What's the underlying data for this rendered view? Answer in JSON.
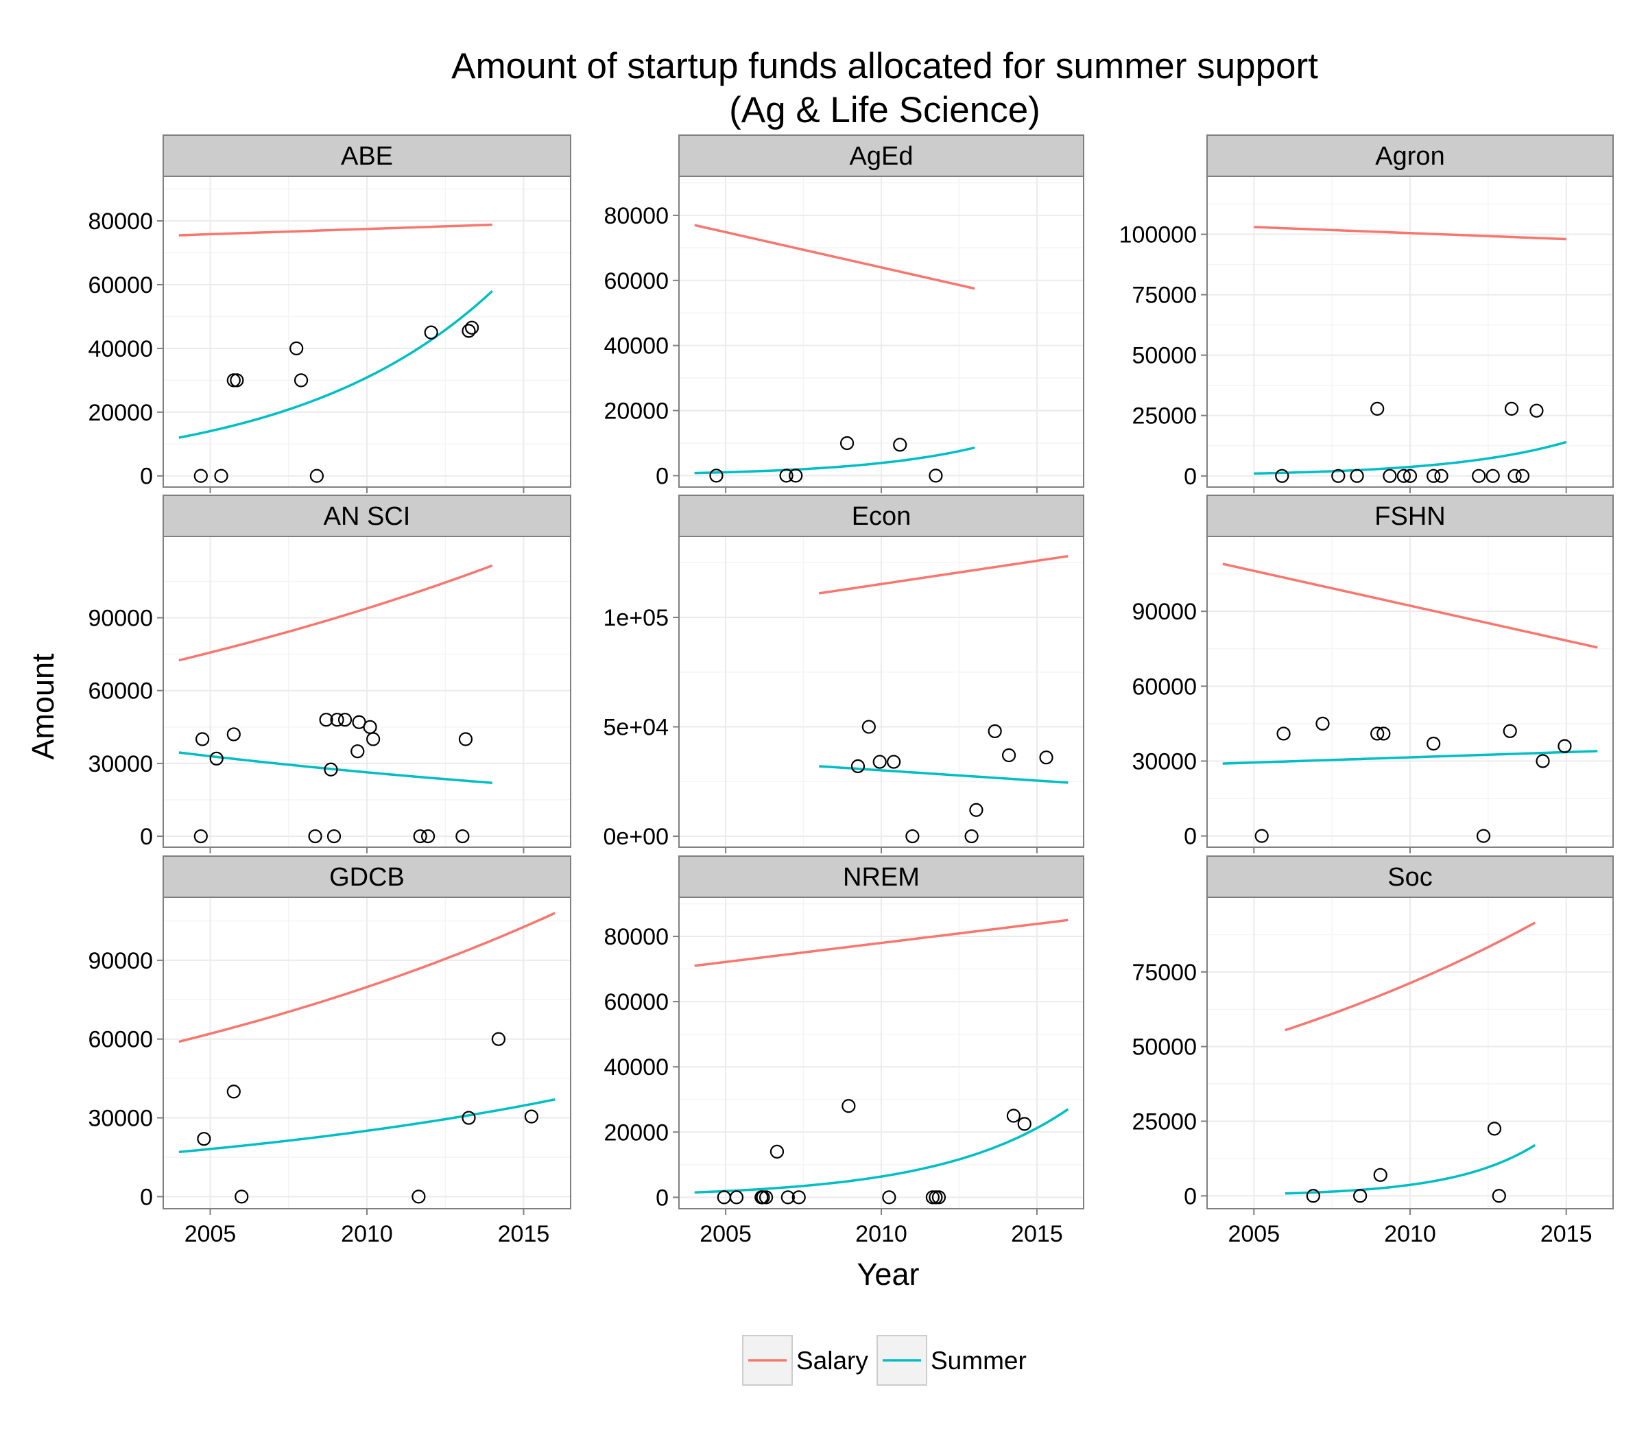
{
  "chart_data": {
    "type": "scatter",
    "title": "Amount of startup funds allocated for summer support",
    "subtitle": "(Ag & Life Science)",
    "xlabel": "Year",
    "ylabel": "Amount",
    "xlim": [
      2003.5,
      2016.5
    ],
    "x_ticks": [
      2005,
      2010,
      2015
    ],
    "x_tick_labels": [
      "2005",
      "2010",
      "2015"
    ],
    "legend": {
      "position": "bottom",
      "entries": [
        {
          "name": "Salary",
          "color": "#F8766D"
        },
        {
          "name": "Summer",
          "color": "#00BFC4"
        }
      ]
    },
    "panels": [
      {
        "name": "ABE",
        "ylim": [
          -3500,
          94000
        ],
        "y_ticks": [
          0,
          20000,
          40000,
          60000,
          80000
        ],
        "y_tick_labels": [
          "0",
          "20000",
          "40000",
          "60000",
          "80000"
        ],
        "points": [
          [
            2004.7,
            0
          ],
          [
            2005.35,
            0
          ],
          [
            2005.75,
            30000
          ],
          [
            2005.85,
            30000
          ],
          [
            2007.75,
            40000
          ],
          [
            2007.9,
            30000
          ],
          [
            2008.4,
            0
          ],
          [
            2012.05,
            45000
          ],
          [
            2013.25,
            45500
          ],
          [
            2013.35,
            46500
          ]
        ],
        "salary": {
          "x_start": 2004,
          "x_end": 2014,
          "y_start": 75500,
          "y_end": 78800,
          "type": "linear"
        },
        "summer": {
          "x_start": 2004,
          "x_end": 2014,
          "y_start": 12000,
          "y_end": 58000,
          "type": "exp"
        }
      },
      {
        "name": "AgEd",
        "ylim": [
          -3500,
          92000
        ],
        "y_ticks": [
          0,
          20000,
          40000,
          60000,
          80000
        ],
        "y_tick_labels": [
          "0",
          "20000",
          "40000",
          "60000",
          "80000"
        ],
        "points": [
          [
            2004.7,
            0
          ],
          [
            2006.95,
            0
          ],
          [
            2007.25,
            0
          ],
          [
            2008.9,
            10000
          ],
          [
            2010.6,
            9500
          ],
          [
            2011.75,
            0
          ]
        ],
        "salary": {
          "x_start": 2004,
          "x_end": 2013,
          "y_start": 77000,
          "y_end": 57500,
          "type": "linear"
        },
        "summer": {
          "x_start": 2004,
          "x_end": 2013,
          "y_start": 800,
          "y_end": 8600,
          "type": "exp"
        }
      },
      {
        "name": "Agron",
        "ylim": [
          -4600,
          124000
        ],
        "y_ticks": [
          0,
          25000,
          50000,
          75000,
          100000
        ],
        "y_tick_labels": [
          "0",
          "25000",
          "50000",
          "75000",
          "100000"
        ],
        "points": [
          [
            2005.9,
            0
          ],
          [
            2007.7,
            0
          ],
          [
            2008.3,
            0
          ],
          [
            2008.95,
            27800
          ],
          [
            2009.35,
            0
          ],
          [
            2009.8,
            0
          ],
          [
            2010.0,
            0
          ],
          [
            2010.75,
            0
          ],
          [
            2011.0,
            0
          ],
          [
            2012.2,
            0
          ],
          [
            2012.65,
            0
          ],
          [
            2013.25,
            27800
          ],
          [
            2013.35,
            0
          ],
          [
            2013.6,
            0
          ],
          [
            2014.05,
            27000
          ]
        ],
        "salary": {
          "x_start": 2005,
          "x_end": 2015,
          "y_start": 103000,
          "y_end": 98000,
          "type": "linear"
        },
        "summer": {
          "x_start": 2005,
          "x_end": 2015,
          "y_start": 1000,
          "y_end": 14000,
          "type": "exp"
        }
      },
      {
        "name": "AN SCI",
        "ylim": [
          -4500,
          123500
        ],
        "y_ticks": [
          0,
          30000,
          60000,
          90000
        ],
        "y_tick_labels": [
          "0",
          "30000",
          "60000",
          "90000"
        ],
        "points": [
          [
            2004.7,
            0
          ],
          [
            2004.75,
            40000
          ],
          [
            2005.2,
            32000
          ],
          [
            2005.75,
            42000
          ],
          [
            2008.35,
            0
          ],
          [
            2008.7,
            48000
          ],
          [
            2008.85,
            27500
          ],
          [
            2008.95,
            0
          ],
          [
            2009.05,
            48000
          ],
          [
            2009.3,
            48000
          ],
          [
            2009.7,
            35000
          ],
          [
            2009.75,
            47000
          ],
          [
            2010.1,
            45000
          ],
          [
            2010.2,
            40000
          ],
          [
            2011.7,
            0
          ],
          [
            2011.95,
            0
          ],
          [
            2013.05,
            0
          ],
          [
            2013.15,
            40000
          ]
        ],
        "salary": {
          "x_start": 2004,
          "x_end": 2014,
          "y_start": 72500,
          "y_end": 111500,
          "type": "exp"
        },
        "summer": {
          "x_start": 2004,
          "x_end": 2014,
          "y_start": 34500,
          "y_end": 22000,
          "type": "exp"
        }
      },
      {
        "name": "Econ",
        "ylim": [
          -5000,
          137000
        ],
        "y_ticks": [
          0,
          50000,
          100000
        ],
        "y_tick_labels": [
          "0e+00",
          "5e+04",
          "1e+05"
        ],
        "points": [
          [
            2009.25,
            32000
          ],
          [
            2009.6,
            50000
          ],
          [
            2009.95,
            34000
          ],
          [
            2010.4,
            34000
          ],
          [
            2011.0,
            0
          ],
          [
            2012.9,
            0
          ],
          [
            2013.05,
            12000
          ],
          [
            2013.65,
            48000
          ],
          [
            2014.1,
            37000
          ],
          [
            2015.3,
            36000
          ]
        ],
        "salary": {
          "x_start": 2008,
          "x_end": 2016,
          "y_start": 111000,
          "y_end": 128000,
          "type": "linear"
        },
        "summer": {
          "x_start": 2008,
          "x_end": 2016,
          "y_start": 32000,
          "y_end": 24500,
          "type": "linear"
        }
      },
      {
        "name": "FSHN",
        "ylim": [
          -4500,
          120000
        ],
        "y_ticks": [
          0,
          30000,
          60000,
          90000
        ],
        "y_tick_labels": [
          "0",
          "30000",
          "60000",
          "90000"
        ],
        "points": [
          [
            2005.25,
            0
          ],
          [
            2005.95,
            41000
          ],
          [
            2007.2,
            45000
          ],
          [
            2008.95,
            41000
          ],
          [
            2009.15,
            41000
          ],
          [
            2010.75,
            37000
          ],
          [
            2012.35,
            0
          ],
          [
            2013.2,
            42000
          ],
          [
            2014.25,
            30000
          ],
          [
            2014.95,
            36000
          ]
        ],
        "salary": {
          "x_start": 2004,
          "x_end": 2016,
          "y_start": 109000,
          "y_end": 75500,
          "type": "linear"
        },
        "summer": {
          "x_start": 2004,
          "x_end": 2016,
          "y_start": 29000,
          "y_end": 34000,
          "type": "linear"
        }
      },
      {
        "name": "GDCB",
        "ylim": [
          -4600,
          114000
        ],
        "y_ticks": [
          0,
          30000,
          60000,
          90000
        ],
        "y_tick_labels": [
          "0",
          "30000",
          "60000",
          "90000"
        ],
        "points": [
          [
            2004.8,
            22000
          ],
          [
            2005.75,
            40000
          ],
          [
            2006.0,
            0
          ],
          [
            2011.65,
            0
          ],
          [
            2013.25,
            30000
          ],
          [
            2014.2,
            60000
          ],
          [
            2015.25,
            30500
          ]
        ],
        "salary": {
          "x_start": 2004,
          "x_end": 2016,
          "y_start": 59000,
          "y_end": 108000,
          "type": "exp"
        },
        "summer": {
          "x_start": 2004,
          "x_end": 2016,
          "y_start": 17000,
          "y_end": 37000,
          "type": "exp"
        }
      },
      {
        "name": "NREM",
        "ylim": [
          -3500,
          92000
        ],
        "y_ticks": [
          0,
          20000,
          40000,
          60000,
          80000
        ],
        "y_tick_labels": [
          "0",
          "20000",
          "40000",
          "60000",
          "80000"
        ],
        "points": [
          [
            2004.95,
            0
          ],
          [
            2005.35,
            0
          ],
          [
            2006.15,
            0
          ],
          [
            2006.2,
            0
          ],
          [
            2006.3,
            0
          ],
          [
            2006.65,
            14000
          ],
          [
            2007.0,
            0
          ],
          [
            2007.35,
            0
          ],
          [
            2008.95,
            28000
          ],
          [
            2010.25,
            0
          ],
          [
            2011.65,
            0
          ],
          [
            2011.75,
            0
          ],
          [
            2011.85,
            0
          ],
          [
            2014.25,
            25000
          ],
          [
            2014.6,
            22500
          ]
        ],
        "salary": {
          "x_start": 2004,
          "x_end": 2016,
          "y_start": 71000,
          "y_end": 85000,
          "type": "linear"
        },
        "summer": {
          "x_start": 2004,
          "x_end": 2016,
          "y_start": 1500,
          "y_end": 27000,
          "type": "exp"
        }
      },
      {
        "name": "Soc",
        "ylim": [
          -4300,
          100000
        ],
        "y_ticks": [
          0,
          25000,
          50000,
          75000
        ],
        "y_tick_labels": [
          "0",
          "25000",
          "50000",
          "75000"
        ],
        "points": [
          [
            2006.9,
            0
          ],
          [
            2008.4,
            0
          ],
          [
            2009.05,
            7000
          ],
          [
            2012.7,
            22500
          ],
          [
            2012.85,
            0
          ]
        ],
        "salary": {
          "x_start": 2006,
          "x_end": 2014,
          "y_start": 55500,
          "y_end": 91500,
          "type": "exp"
        },
        "summer": {
          "x_start": 2006,
          "x_end": 2014,
          "y_start": 800,
          "y_end": 17000,
          "type": "exp"
        }
      }
    ]
  }
}
